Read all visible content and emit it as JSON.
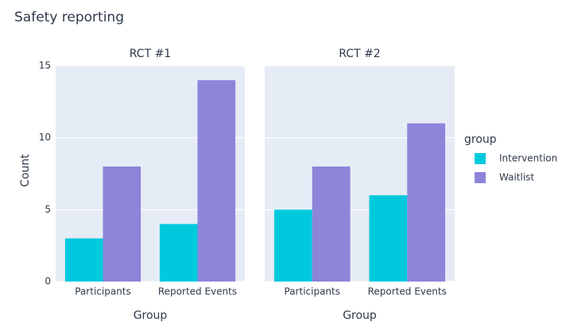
{
  "title": "Safety reporting",
  "legend_title": "group",
  "chart_data": [
    {
      "type": "bar",
      "title": "RCT #1",
      "xlabel": "Group",
      "ylabel": "Count",
      "categories": [
        "Participants",
        "Reported Events"
      ],
      "series": [
        {
          "name": "Intervention",
          "color": "#00c9de",
          "values": [
            3,
            4
          ]
        },
        {
          "name": "Waitlist",
          "color": "#8c85d9",
          "values": [
            8,
            14
          ]
        }
      ],
      "ylim": [
        0,
        15
      ],
      "yticks": [
        0,
        5,
        10,
        15
      ],
      "yticklabels": true,
      "grid": true
    },
    {
      "type": "bar",
      "title": "RCT #2",
      "xlabel": "Group",
      "categories": [
        "Participants",
        "Reported Events"
      ],
      "series": [
        {
          "name": "Intervention",
          "color": "#00c9de",
          "values": [
            5,
            6
          ]
        },
        {
          "name": "Waitlist",
          "color": "#8c85d9",
          "values": [
            8,
            11
          ]
        }
      ],
      "ylim": [
        0,
        15
      ],
      "yticks": [
        0,
        5,
        10,
        15
      ],
      "yticklabels": false,
      "grid": true
    }
  ]
}
